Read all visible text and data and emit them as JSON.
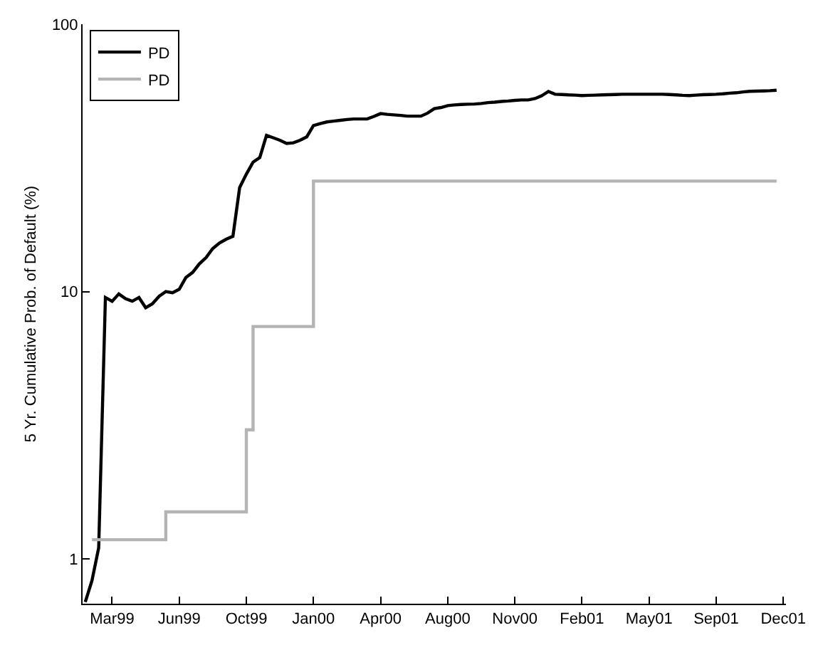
{
  "chart_data": {
    "type": "line",
    "ylabel": "5 Yr. Cumulative Prob. of Default (%)",
    "log": "y",
    "legend": "top left",
    "marker": "none",
    "line_style": "solid",
    "ylim": [
      0.68,
      100
    ],
    "categories": [
      null,
      null,
      null,
      null,
      "Mar99",
      null,
      null,
      null,
      null,
      null,
      null,
      null,
      null,
      null,
      "Jun99",
      null,
      null,
      null,
      null,
      null,
      null,
      null,
      null,
      null,
      "Oct99",
      null,
      null,
      null,
      null,
      null,
      null,
      null,
      null,
      null,
      "Jan00",
      null,
      null,
      null,
      null,
      null,
      null,
      null,
      null,
      null,
      "Apr00",
      null,
      null,
      null,
      null,
      null,
      null,
      null,
      null,
      null,
      "Aug00",
      null,
      null,
      null,
      null,
      null,
      null,
      null,
      null,
      null,
      "Nov00",
      null,
      null,
      null,
      null,
      null,
      null,
      null,
      null,
      null,
      "Feb01",
      null,
      null,
      null,
      null,
      null,
      null,
      null,
      null,
      null,
      "May01",
      null,
      null,
      null,
      null,
      null,
      null,
      null,
      null,
      null,
      "Sep01",
      null,
      null,
      null,
      null,
      null,
      null,
      null,
      null,
      null,
      "Dec01"
    ],
    "yticks": [
      1,
      10,
      100
    ],
    "series": [
      {
        "name": "PD",
        "color": "#000000",
        "values": [
          0.69,
          0.83,
          1.1,
          9.5,
          9.2,
          9.8,
          9.4,
          9.2,
          9.5,
          8.7,
          9.0,
          9.6,
          10.0,
          9.9,
          10.2,
          11.3,
          11.8,
          12.7,
          13.4,
          14.5,
          15.2,
          15.7,
          16.1,
          24.5,
          27.5,
          30.5,
          31.7,
          38.4,
          37.6,
          36.8,
          35.8,
          36.0,
          36.8,
          37.9,
          41.8,
          42.5,
          43.1,
          43.4,
          43.7,
          44.0,
          44.2,
          44.2,
          44.2,
          45.2,
          46.3,
          46.0,
          45.8,
          45.6,
          45.3,
          45.3,
          45.3,
          46.5,
          48.3,
          48.8,
          49.6,
          49.9,
          50.1,
          50.2,
          50.3,
          50.5,
          50.9,
          51.1,
          51.4,
          51.6,
          51.9,
          52.1,
          52.1,
          52.7,
          54.0,
          56.0,
          54.7,
          54.6,
          54.4,
          54.3,
          54.1,
          54.2,
          54.3,
          54.4,
          54.5,
          54.6,
          54.7,
          54.7,
          54.7,
          54.7,
          54.7,
          54.7,
          54.7,
          54.6,
          54.4,
          54.2,
          54.1,
          54.3,
          54.5,
          54.6,
          54.7,
          54.9,
          55.2,
          55.4,
          55.8,
          56.1,
          56.2,
          56.3,
          56.4,
          56.6,
          null
        ]
      },
      {
        "name": "PD",
        "color": "#b4b4b4",
        "type": "step",
        "values": [
          null,
          1.18,
          1.18,
          1.18,
          1.18,
          1.18,
          1.18,
          1.18,
          1.18,
          1.18,
          1.18,
          1.18,
          1.5,
          1.5,
          1.5,
          1.5,
          1.5,
          1.5,
          1.5,
          1.5,
          1.5,
          1.5,
          1.5,
          1.5,
          3.04,
          7.4,
          7.4,
          7.4,
          7.4,
          7.4,
          7.4,
          7.4,
          7.4,
          7.4,
          25.9,
          25.9,
          25.9,
          25.9,
          25.9,
          25.9,
          25.9,
          25.9,
          25.9,
          25.9,
          25.9,
          25.9,
          25.9,
          25.9,
          25.9,
          25.9,
          25.9,
          25.9,
          25.9,
          25.9,
          25.9,
          25.9,
          25.9,
          25.9,
          25.9,
          25.9,
          25.9,
          25.9,
          25.9,
          25.9,
          25.9,
          25.9,
          25.9,
          25.9,
          25.9,
          25.9,
          25.9,
          25.9,
          25.9,
          25.9,
          25.9,
          25.9,
          25.9,
          25.9,
          25.9,
          25.9,
          25.9,
          25.9,
          25.9,
          25.9,
          25.9,
          25.9,
          25.9,
          25.9,
          25.9,
          25.9,
          25.9,
          25.9,
          25.9,
          25.9,
          25.9,
          25.9,
          25.9,
          25.9,
          25.9,
          25.9,
          25.9,
          25.9,
          25.9,
          25.9,
          null
        ]
      }
    ]
  }
}
